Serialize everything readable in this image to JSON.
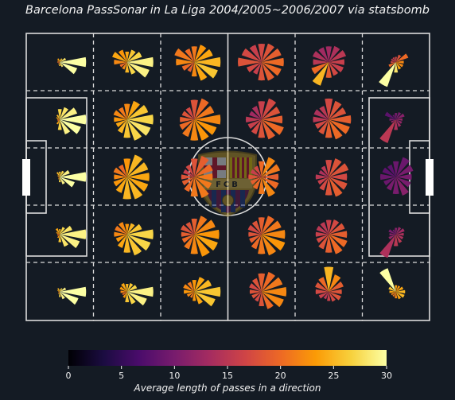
{
  "title": "Barcelona PassSonar in La Liga 2004/2005~2006/2007 via statsbomb",
  "colorbar": {
    "label": "Average length of passes in a direction",
    "ticks": [
      "0",
      "5",
      "10",
      "15",
      "20",
      "25",
      "30"
    ],
    "min": 0,
    "max": 30
  },
  "colors": {
    "background": "#141b24",
    "lines": "#dcdcdc",
    "colormap": [
      "#000004",
      "#1b0c41",
      "#4a0c6b",
      "#781c6d",
      "#a52c60",
      "#cf4446",
      "#ed6925",
      "#fb9b06",
      "#f7d13d",
      "#fcffa4"
    ]
  },
  "logo": {
    "text": "FCB"
  },
  "chart_data": {
    "type": "polar-bar-grid",
    "description_units": "each sonar: 12 wedges, wedge length = relative pass count, color = average pass length",
    "grid": {
      "cols": 6,
      "rows": 5
    },
    "sonars": [
      {
        "cell": [
          0,
          0
        ],
        "counts": [
          1.0,
          0.25,
          0.15,
          0.1,
          0.15,
          0.1,
          0.1,
          0.05,
          0.1,
          0.15,
          0.2,
          0.7
        ],
        "lengths": [
          30,
          28,
          26,
          25,
          24,
          22,
          20,
          18,
          22,
          26,
          28,
          30
        ]
      },
      {
        "cell": [
          1,
          0
        ],
        "counts": [
          1.0,
          0.6,
          0.5,
          0.4,
          0.5,
          0.6,
          0.5,
          0.3,
          0.3,
          0.4,
          0.5,
          0.9
        ],
        "lengths": [
          29,
          27,
          26,
          24,
          23,
          24,
          22,
          20,
          22,
          25,
          27,
          29
        ]
      },
      {
        "cell": [
          2,
          0
        ],
        "counts": [
          1.0,
          0.75,
          0.7,
          0.6,
          0.55,
          0.8,
          0.7,
          0.5,
          0.4,
          0.55,
          0.75,
          0.95
        ],
        "lengths": [
          25,
          24,
          23,
          21,
          20,
          21,
          22,
          20,
          19,
          22,
          24,
          26
        ]
      },
      {
        "cell": [
          3,
          0
        ],
        "counts": [
          0.85,
          0.8,
          0.75,
          0.7,
          0.7,
          0.8,
          0.9,
          0.6,
          0.5,
          0.7,
          0.75,
          0.8
        ],
        "lengths": [
          20,
          19,
          18,
          17,
          16,
          17,
          18,
          17,
          16,
          18,
          19,
          20
        ]
      },
      {
        "cell": [
          4,
          0
        ],
        "counts": [
          0.6,
          0.7,
          0.65,
          0.6,
          0.6,
          0.65,
          0.6,
          0.7,
          0.95,
          0.6,
          0.55,
          0.6
        ],
        "lengths": [
          16,
          15,
          14,
          13,
          13,
          14,
          15,
          20,
          25,
          19,
          17,
          16
        ]
      },
      {
        "cell": [
          5,
          0
        ],
        "counts": [
          0.3,
          0.5,
          0.3,
          0.2,
          0.2,
          0.2,
          0.2,
          0.3,
          1.0,
          0.4,
          0.3,
          0.3
        ],
        "lengths": [
          22,
          20,
          18,
          17,
          16,
          16,
          17,
          20,
          30,
          28,
          24,
          22
        ]
      },
      {
        "cell": [
          0,
          1
        ],
        "counts": [
          1.0,
          0.7,
          0.5,
          0.4,
          0.2,
          0.15,
          0.1,
          0.1,
          0.2,
          0.4,
          0.6,
          0.85
        ],
        "lengths": [
          30,
          29,
          28,
          27,
          25,
          24,
          22,
          20,
          24,
          27,
          29,
          30
        ]
      },
      {
        "cell": [
          1,
          1
        ],
        "counts": [
          1.0,
          0.85,
          0.75,
          0.6,
          0.5,
          0.55,
          0.5,
          0.45,
          0.55,
          0.7,
          0.85,
          0.95
        ],
        "lengths": [
          27,
          26,
          24,
          22,
          21,
          22,
          23,
          24,
          25,
          26,
          27,
          28
        ]
      },
      {
        "cell": [
          2,
          1
        ],
        "counts": [
          1.0,
          0.8,
          0.85,
          0.75,
          0.5,
          0.5,
          0.55,
          0.6,
          0.7,
          0.8,
          0.85,
          0.9
        ],
        "lengths": [
          22,
          21,
          20,
          18,
          17,
          18,
          19,
          20,
          21,
          22,
          23,
          23
        ]
      },
      {
        "cell": [
          3,
          1
        ],
        "counts": [
          0.8,
          0.75,
          0.85,
          0.7,
          0.55,
          0.5,
          0.6,
          0.55,
          0.6,
          0.7,
          0.8,
          0.9
        ],
        "lengths": [
          19,
          18,
          17,
          16,
          14,
          13,
          15,
          16,
          17,
          18,
          19,
          20
        ]
      },
      {
        "cell": [
          4,
          1
        ],
        "counts": [
          0.85,
          0.7,
          0.75,
          0.8,
          0.55,
          0.6,
          0.6,
          0.55,
          0.6,
          0.7,
          0.8,
          0.85
        ],
        "lengths": [
          19,
          18,
          18,
          17,
          15,
          14,
          15,
          17,
          18,
          19,
          20,
          20
        ]
      },
      {
        "cell": [
          5,
          1
        ],
        "counts": [
          0.25,
          0.35,
          0.3,
          0.25,
          0.2,
          0.45,
          0.25,
          0.2,
          0.95,
          0.4,
          0.3,
          0.25
        ],
        "lengths": [
          12,
          11,
          10,
          10,
          9,
          8,
          10,
          12,
          15,
          14,
          13,
          12
        ]
      },
      {
        "cell": [
          0,
          2
        ],
        "counts": [
          1.0,
          0.4,
          0.25,
          0.2,
          0.2,
          0.1,
          0.05,
          0.05,
          0.1,
          0.2,
          0.3,
          0.6
        ],
        "lengths": [
          30,
          29,
          27,
          26,
          25,
          24,
          22,
          20,
          24,
          27,
          29,
          30
        ]
      },
      {
        "cell": [
          1,
          2
        ],
        "counts": [
          0.85,
          0.85,
          0.9,
          0.7,
          0.5,
          0.55,
          0.5,
          0.55,
          0.65,
          0.85,
          0.9,
          0.85
        ],
        "lengths": [
          24,
          25,
          25,
          23,
          20,
          21,
          22,
          23,
          24,
          25,
          25,
          24
        ]
      },
      {
        "cell": [
          2,
          2
        ],
        "counts": [
          0.7,
          0.75,
          0.85,
          0.7,
          0.5,
          0.45,
          0.5,
          0.5,
          0.6,
          0.75,
          0.85,
          0.7
        ],
        "lengths": [
          21,
          20,
          19,
          18,
          17,
          16,
          18,
          19,
          20,
          21,
          21,
          21
        ]
      },
      {
        "cell": [
          3,
          2
        ],
        "counts": [
          0.65,
          0.75,
          0.8,
          0.6,
          0.45,
          0.45,
          0.5,
          0.45,
          0.5,
          0.65,
          0.8,
          0.7
        ],
        "lengths": [
          19,
          21,
          22,
          20,
          17,
          16,
          18,
          19,
          20,
          21,
          22,
          20
        ]
      },
      {
        "cell": [
          4,
          2
        ],
        "counts": [
          0.7,
          0.8,
          0.75,
          0.65,
          0.45,
          0.4,
          0.5,
          0.45,
          0.55,
          0.7,
          0.8,
          0.75
        ],
        "lengths": [
          17,
          18,
          18,
          17,
          15,
          14,
          15,
          16,
          17,
          18,
          19,
          18
        ]
      },
      {
        "cell": [
          5,
          2
        ],
        "counts": [
          0.6,
          0.7,
          0.8,
          0.6,
          0.5,
          0.55,
          0.6,
          0.5,
          0.55,
          0.65,
          0.75,
          0.6
        ],
        "lengths": [
          10,
          10,
          9,
          9,
          8,
          8,
          9,
          9,
          10,
          10,
          11,
          10
        ]
      },
      {
        "cell": [
          0,
          3
        ],
        "counts": [
          1.0,
          0.5,
          0.3,
          0.2,
          0.25,
          0.15,
          0.1,
          0.1,
          0.15,
          0.3,
          0.5,
          0.8
        ],
        "lengths": [
          29,
          28,
          27,
          25,
          24,
          23,
          21,
          20,
          23,
          26,
          28,
          29
        ]
      },
      {
        "cell": [
          1,
          3
        ],
        "counts": [
          1.0,
          0.6,
          0.45,
          0.4,
          0.5,
          0.5,
          0.5,
          0.45,
          0.55,
          0.7,
          0.85,
          0.95
        ],
        "lengths": [
          27,
          26,
          25,
          23,
          22,
          21,
          22,
          23,
          24,
          25,
          26,
          27
        ]
      },
      {
        "cell": [
          2,
          3
        ],
        "counts": [
          0.95,
          0.85,
          0.75,
          0.6,
          0.5,
          0.55,
          0.5,
          0.5,
          0.6,
          0.75,
          0.9,
          0.95
        ],
        "lengths": [
          23,
          22,
          21,
          19,
          18,
          18,
          19,
          20,
          21,
          22,
          23,
          24
        ]
      },
      {
        "cell": [
          3,
          3
        ],
        "counts": [
          0.9,
          0.8,
          0.75,
          0.65,
          0.55,
          0.55,
          0.5,
          0.5,
          0.6,
          0.75,
          0.85,
          0.95
        ],
        "lengths": [
          22,
          21,
          20,
          19,
          18,
          17,
          18,
          19,
          20,
          21,
          22,
          23
        ]
      },
      {
        "cell": [
          4,
          3
        ],
        "counts": [
          0.7,
          0.65,
          0.6,
          0.55,
          0.5,
          0.5,
          0.5,
          0.5,
          0.6,
          0.7,
          0.8,
          0.75
        ],
        "lengths": [
          19,
          18,
          17,
          16,
          15,
          15,
          16,
          17,
          18,
          19,
          20,
          20
        ]
      },
      {
        "cell": [
          5,
          3
        ],
        "counts": [
          0.3,
          0.35,
          0.3,
          0.25,
          0.2,
          0.3,
          0.25,
          0.3,
          0.95,
          0.45,
          0.35,
          0.3
        ],
        "lengths": [
          14,
          13,
          12,
          11,
          10,
          10,
          11,
          12,
          14,
          15,
          15,
          14
        ]
      },
      {
        "cell": [
          0,
          4
        ],
        "counts": [
          1.0,
          0.25,
          0.15,
          0.1,
          0.15,
          0.1,
          0.05,
          0.05,
          0.1,
          0.2,
          0.3,
          0.75
        ],
        "lengths": [
          30,
          29,
          27,
          26,
          25,
          24,
          22,
          20,
          24,
          27,
          29,
          30
        ]
      },
      {
        "cell": [
          1,
          4
        ],
        "counts": [
          1.0,
          0.4,
          0.35,
          0.3,
          0.35,
          0.3,
          0.25,
          0.2,
          0.25,
          0.4,
          0.5,
          0.8
        ],
        "lengths": [
          29,
          27,
          26,
          25,
          24,
          23,
          22,
          20,
          23,
          26,
          27,
          29
        ]
      },
      {
        "cell": [
          2,
          4
        ],
        "counts": [
          1.0,
          0.7,
          0.6,
          0.45,
          0.4,
          0.45,
          0.4,
          0.3,
          0.25,
          0.35,
          0.5,
          0.85
        ],
        "lengths": [
          26,
          25,
          24,
          23,
          21,
          22,
          23,
          22,
          21,
          23,
          24,
          26
        ]
      },
      {
        "cell": [
          3,
          4
        ],
        "counts": [
          0.95,
          0.85,
          0.8,
          0.7,
          0.55,
          0.5,
          0.45,
          0.4,
          0.4,
          0.55,
          0.7,
          0.9
        ],
        "lengths": [
          22,
          21,
          20,
          19,
          18,
          17,
          18,
          18,
          17,
          18,
          20,
          22
        ]
      },
      {
        "cell": [
          4,
          4
        ],
        "counts": [
          0.5,
          0.6,
          0.7,
          0.95,
          0.6,
          0.55,
          0.5,
          0.4,
          0.3,
          0.35,
          0.4,
          0.5
        ],
        "lengths": [
          18,
          19,
          22,
          25,
          20,
          18,
          17,
          16,
          15,
          16,
          17,
          18
        ]
      },
      {
        "cell": [
          5,
          4
        ],
        "counts": [
          0.35,
          0.3,
          0.25,
          0.25,
          0.95,
          0.3,
          0.25,
          0.2,
          0.2,
          0.25,
          0.3,
          0.35
        ],
        "lengths": [
          25,
          24,
          23,
          24,
          30,
          26,
          24,
          22,
          21,
          22,
          24,
          25
        ]
      }
    ]
  }
}
